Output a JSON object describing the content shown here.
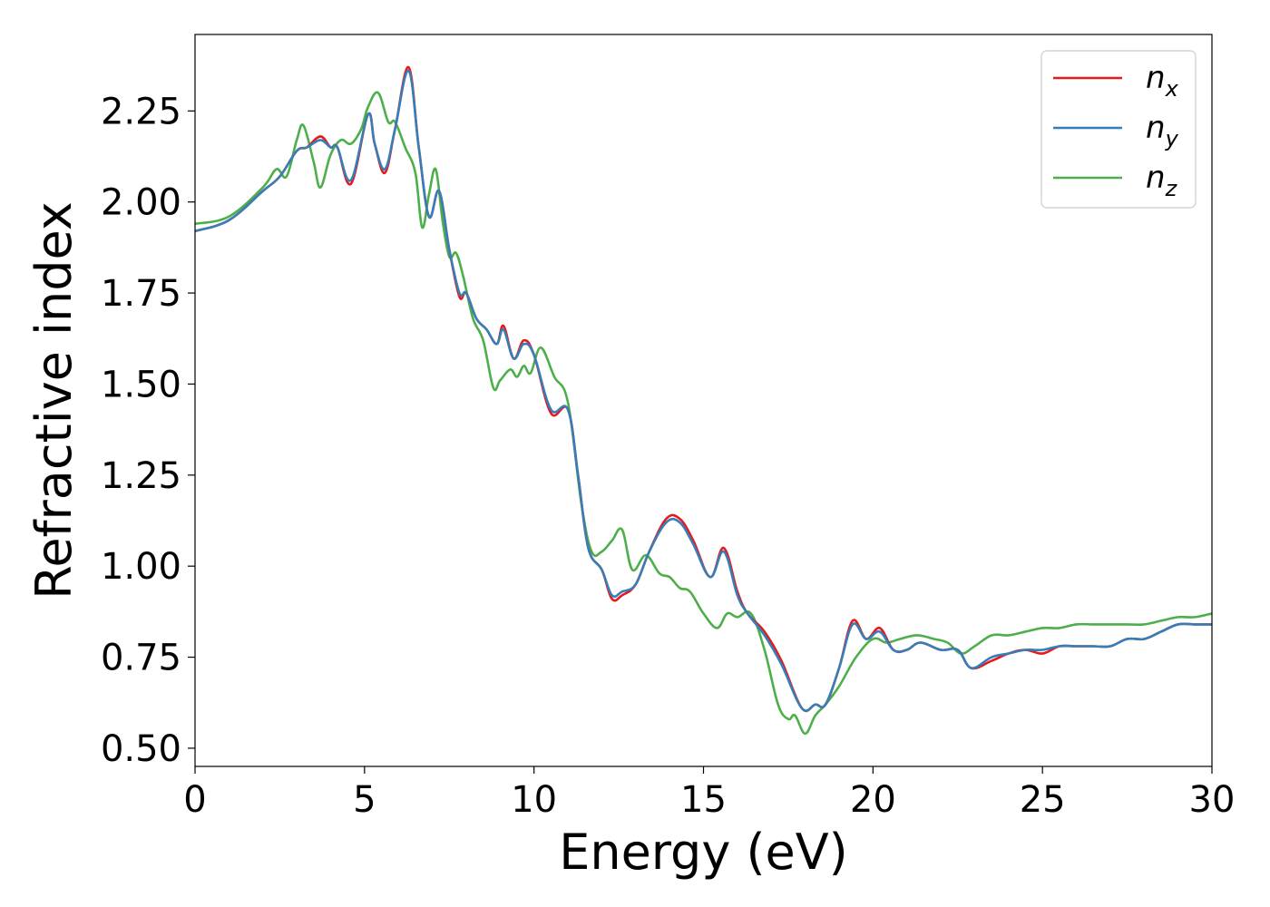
{
  "chart_data": {
    "type": "line",
    "title": "",
    "xlabel": "Energy (eV)",
    "ylabel": "Refractive index",
    "xlim": [
      0,
      30
    ],
    "ylim": [
      0.45,
      2.46
    ],
    "xticks": [
      0,
      5,
      10,
      15,
      20,
      25,
      30
    ],
    "xtick_labels": [
      "0",
      "5",
      "10",
      "15",
      "20",
      "25",
      "30"
    ],
    "yticks": [
      0.5,
      0.75,
      1.0,
      1.25,
      1.5,
      1.75,
      2.0,
      2.25
    ],
    "ytick_labels": [
      "0.50",
      "0.75",
      "1.00",
      "1.25",
      "1.50",
      "1.75",
      "2.00",
      "2.25"
    ],
    "grid": false,
    "legend_position": "top-right",
    "series": [
      {
        "name": "n_x",
        "label_base": "n",
        "label_sub": "x",
        "color": "#e41a1c",
        "x": [
          0,
          1,
          2,
          2.5,
          3,
          3.3,
          3.7,
          4.0,
          4.2,
          4.6,
          5.1,
          5.3,
          5.6,
          5.9,
          6.3,
          6.6,
          6.9,
          7.2,
          7.5,
          7.8,
          8.0,
          8.3,
          8.6,
          8.9,
          9.1,
          9.4,
          9.7,
          10.0,
          10.5,
          11.0,
          11.3,
          11.6,
          12.0,
          12.3,
          12.6,
          13.0,
          13.4,
          13.9,
          14.3,
          14.7,
          15.2,
          15.6,
          16.0,
          16.3,
          16.8,
          17.3,
          17.9,
          18.3,
          18.6,
          19.0,
          19.4,
          19.8,
          20.2,
          20.6,
          21.0,
          21.4,
          22.0,
          22.5,
          22.9,
          23.5,
          24.0,
          24.5,
          25.0,
          25.5,
          26.0,
          26.5,
          27.0,
          27.5,
          28.0,
          28.5,
          29.0,
          29.5,
          30.0
        ],
        "y": [
          1.92,
          1.95,
          2.03,
          2.07,
          2.14,
          2.15,
          2.18,
          2.15,
          2.15,
          2.05,
          2.24,
          2.16,
          2.08,
          2.2,
          2.37,
          2.15,
          1.96,
          2.03,
          1.87,
          1.74,
          1.75,
          1.68,
          1.65,
          1.61,
          1.66,
          1.57,
          1.62,
          1.58,
          1.42,
          1.43,
          1.25,
          1.05,
          0.99,
          0.91,
          0.92,
          0.95,
          1.04,
          1.13,
          1.13,
          1.07,
          0.97,
          1.05,
          0.93,
          0.87,
          0.82,
          0.74,
          0.61,
          0.62,
          0.62,
          0.72,
          0.85,
          0.8,
          0.83,
          0.77,
          0.77,
          0.79,
          0.77,
          0.77,
          0.72,
          0.74,
          0.76,
          0.77,
          0.76,
          0.78,
          0.78,
          0.78,
          0.78,
          0.8,
          0.8,
          0.82,
          0.84,
          0.84,
          0.84
        ]
      },
      {
        "name": "n_y",
        "label_base": "n",
        "label_sub": "y",
        "color": "#377eb8",
        "x": [
          0,
          1,
          2,
          2.5,
          3,
          3.3,
          3.7,
          4.0,
          4.2,
          4.6,
          5.1,
          5.3,
          5.6,
          5.9,
          6.3,
          6.6,
          6.9,
          7.2,
          7.5,
          7.8,
          8.0,
          8.3,
          8.6,
          8.9,
          9.1,
          9.4,
          9.7,
          10.0,
          10.5,
          11.0,
          11.3,
          11.6,
          12.0,
          12.3,
          12.6,
          13.0,
          13.4,
          13.9,
          14.3,
          14.7,
          15.2,
          15.6,
          16.0,
          16.3,
          16.8,
          17.3,
          17.9,
          18.3,
          18.6,
          19.0,
          19.4,
          19.8,
          20.2,
          20.6,
          21.0,
          21.4,
          22.0,
          22.5,
          22.9,
          23.5,
          24.0,
          24.5,
          25.0,
          25.5,
          26.0,
          26.5,
          27.0,
          27.5,
          28.0,
          28.5,
          29.0,
          29.5,
          30.0
        ],
        "y": [
          1.92,
          1.95,
          2.03,
          2.07,
          2.14,
          2.15,
          2.17,
          2.15,
          2.15,
          2.06,
          2.24,
          2.16,
          2.09,
          2.2,
          2.36,
          2.15,
          1.96,
          2.03,
          1.87,
          1.75,
          1.75,
          1.68,
          1.65,
          1.61,
          1.65,
          1.57,
          1.61,
          1.58,
          1.43,
          1.43,
          1.25,
          1.05,
          0.99,
          0.92,
          0.93,
          0.95,
          1.04,
          1.12,
          1.12,
          1.06,
          0.97,
          1.04,
          0.92,
          0.87,
          0.81,
          0.73,
          0.61,
          0.62,
          0.62,
          0.72,
          0.84,
          0.8,
          0.82,
          0.77,
          0.77,
          0.79,
          0.77,
          0.77,
          0.72,
          0.75,
          0.76,
          0.77,
          0.77,
          0.78,
          0.78,
          0.78,
          0.78,
          0.8,
          0.8,
          0.82,
          0.84,
          0.84,
          0.84
        ]
      },
      {
        "name": "n_z",
        "label_base": "n",
        "label_sub": "z",
        "color": "#4daf4a",
        "x": [
          0,
          1,
          2,
          2.4,
          2.7,
          3.0,
          3.2,
          3.5,
          3.7,
          4.0,
          4.3,
          4.6,
          4.9,
          5.1,
          5.4,
          5.7,
          5.9,
          6.2,
          6.5,
          6.7,
          6.9,
          7.1,
          7.3,
          7.5,
          7.7,
          7.9,
          8.2,
          8.5,
          8.8,
          9.0,
          9.3,
          9.5,
          9.7,
          9.9,
          10.2,
          10.6,
          11.0,
          11.4,
          11.7,
          12.0,
          12.3,
          12.6,
          12.9,
          13.3,
          13.7,
          14.0,
          14.3,
          14.6,
          15.0,
          15.4,
          15.7,
          16.0,
          16.4,
          16.8,
          17.2,
          17.5,
          17.7,
          18.0,
          18.3,
          18.6,
          19.0,
          19.5,
          20.0,
          20.4,
          20.8,
          21.3,
          21.8,
          22.2,
          22.6,
          23.0,
          23.5,
          24.0,
          24.5,
          25.0,
          25.5,
          26.0,
          26.5,
          27.0,
          27.5,
          28.0,
          28.5,
          29.0,
          29.5,
          30.0
        ],
        "y": [
          1.94,
          1.96,
          2.04,
          2.09,
          2.07,
          2.17,
          2.21,
          2.11,
          2.04,
          2.13,
          2.17,
          2.16,
          2.2,
          2.26,
          2.3,
          2.22,
          2.22,
          2.15,
          2.08,
          1.93,
          2.02,
          2.09,
          1.95,
          1.85,
          1.86,
          1.8,
          1.68,
          1.62,
          1.49,
          1.51,
          1.54,
          1.52,
          1.55,
          1.53,
          1.6,
          1.52,
          1.45,
          1.17,
          1.04,
          1.04,
          1.07,
          1.1,
          0.99,
          1.03,
          0.98,
          0.97,
          0.94,
          0.93,
          0.87,
          0.83,
          0.87,
          0.86,
          0.87,
          0.77,
          0.62,
          0.58,
          0.59,
          0.54,
          0.59,
          0.62,
          0.67,
          0.75,
          0.8,
          0.79,
          0.8,
          0.81,
          0.8,
          0.79,
          0.76,
          0.78,
          0.81,
          0.81,
          0.82,
          0.83,
          0.83,
          0.84,
          0.84,
          0.84,
          0.84,
          0.84,
          0.85,
          0.86,
          0.86,
          0.87
        ]
      }
    ]
  }
}
